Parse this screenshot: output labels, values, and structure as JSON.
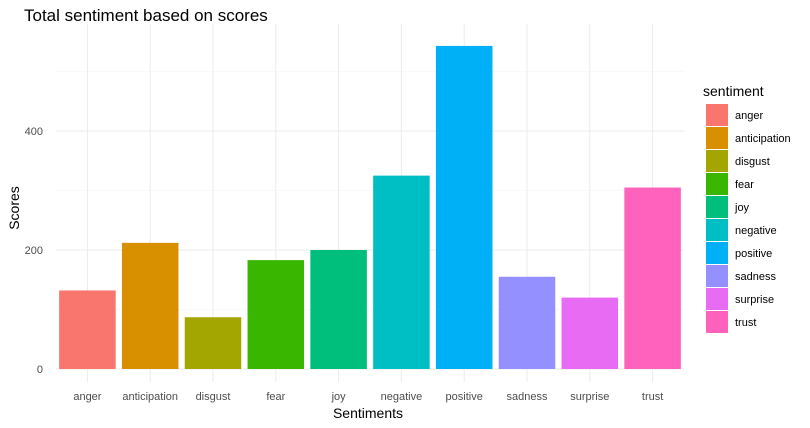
{
  "chart_data": {
    "type": "bar",
    "title": "Total sentiment based on scores",
    "xlabel": "Sentiments",
    "ylabel": "Scores",
    "categories": [
      "anger",
      "anticipation",
      "disgust",
      "fear",
      "joy",
      "negative",
      "positive",
      "sadness",
      "surprise",
      "trust"
    ],
    "values": [
      132,
      212,
      87,
      183,
      200,
      325,
      543,
      155,
      120,
      305
    ],
    "colors": [
      "#F8766D",
      "#D89000",
      "#A3A500",
      "#39B600",
      "#00BF7D",
      "#00BFC4",
      "#00B0F6",
      "#9590FF",
      "#E76BF3",
      "#FF62BC"
    ],
    "ylim": [
      0,
      560
    ],
    "yticks": [
      0,
      200,
      400
    ],
    "grid": true,
    "legend": {
      "title": "sentiment",
      "placement": "right",
      "entries": [
        "anger",
        "anticipation",
        "disgust",
        "fear",
        "joy",
        "negative",
        "positive",
        "sadness",
        "surprise",
        "trust"
      ]
    }
  }
}
